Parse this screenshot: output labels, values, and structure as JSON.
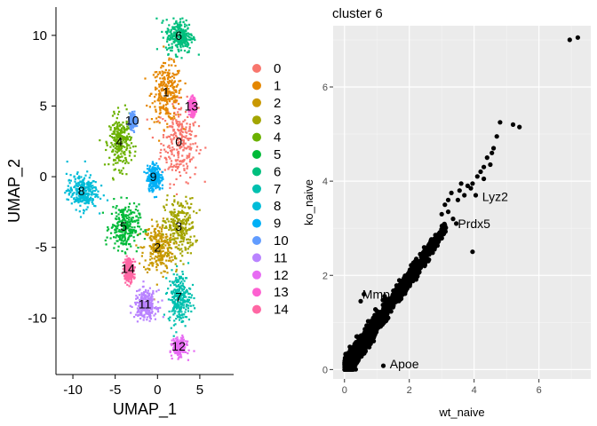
{
  "chart_data": [
    {
      "type": "scatter",
      "title": "",
      "xlabel": "UMAP_1",
      "ylabel": "UMAP_2",
      "xlim": [
        -12,
        9
      ],
      "ylim": [
        -14,
        12
      ],
      "xticks": [
        -10,
        -5,
        0,
        5
      ],
      "yticks": [
        -10,
        -5,
        0,
        5,
        10
      ],
      "grid": false,
      "legend_position": "right",
      "clusters": [
        {
          "name": "0",
          "color": "#F8766D",
          "center": [
            2.5,
            2.5
          ],
          "spread": [
            2.2,
            2.8
          ]
        },
        {
          "name": "1",
          "color": "#E58700",
          "center": [
            1.0,
            6.0
          ],
          "spread": [
            1.8,
            2.0
          ]
        },
        {
          "name": "2",
          "color": "#C99800",
          "center": [
            0.0,
            -5.0
          ],
          "spread": [
            1.8,
            1.8
          ]
        },
        {
          "name": "3",
          "color": "#A3A500",
          "center": [
            2.5,
            -3.5
          ],
          "spread": [
            1.8,
            2.0
          ]
        },
        {
          "name": "4",
          "color": "#6BB100",
          "center": [
            -4.5,
            2.5
          ],
          "spread": [
            1.3,
            1.8
          ]
        },
        {
          "name": "5",
          "color": "#00BA38",
          "center": [
            -4.0,
            -3.5
          ],
          "spread": [
            1.7,
            1.6
          ]
        },
        {
          "name": "6",
          "color": "#00BF7D",
          "center": [
            2.5,
            10.0
          ],
          "spread": [
            1.6,
            1.2
          ]
        },
        {
          "name": "7",
          "color": "#00C0AF",
          "center": [
            2.5,
            -8.5
          ],
          "spread": [
            1.3,
            1.8
          ]
        },
        {
          "name": "8",
          "color": "#00BCD8",
          "center": [
            -9.0,
            -1.0
          ],
          "spread": [
            1.8,
            1.2
          ]
        },
        {
          "name": "9",
          "color": "#00B0F6",
          "center": [
            -0.5,
            0.0
          ],
          "spread": [
            0.8,
            0.9
          ]
        },
        {
          "name": "10",
          "color": "#619CFF",
          "center": [
            -3.0,
            4.0
          ],
          "spread": [
            0.4,
            0.5
          ]
        },
        {
          "name": "11",
          "color": "#B983FF",
          "center": [
            -1.5,
            -9.0
          ],
          "spread": [
            1.3,
            1.0
          ]
        },
        {
          "name": "12",
          "color": "#E76BF3",
          "center": [
            2.5,
            -12.0
          ],
          "spread": [
            0.8,
            0.6
          ]
        },
        {
          "name": "13",
          "color": "#FD61D1",
          "center": [
            4.0,
            5.0
          ],
          "spread": [
            0.4,
            0.6
          ]
        },
        {
          "name": "14",
          "color": "#FF67A4",
          "center": [
            -3.5,
            -6.5
          ],
          "spread": [
            0.6,
            0.8
          ]
        }
      ]
    },
    {
      "type": "scatter",
      "title": "cluster 6",
      "xlabel": "wt_naive",
      "ylabel": "ko_naive",
      "xlim": [
        -0.35,
        7.6
      ],
      "ylim": [
        -0.2,
        7.3
      ],
      "xticks": [
        0,
        2,
        4,
        6
      ],
      "yticks": [
        0,
        2,
        4,
        6
      ],
      "grid": true,
      "background": "#EBEBEB",
      "point_color": "#000000",
      "points": [
        [
          7.2,
          7.05
        ],
        [
          6.95,
          7.0
        ],
        [
          5.4,
          5.15
        ],
        [
          5.2,
          5.2
        ],
        [
          4.8,
          5.25
        ],
        [
          4.7,
          4.95
        ],
        [
          4.6,
          4.7
        ],
        [
          4.55,
          4.6
        ],
        [
          4.5,
          4.35
        ],
        [
          4.4,
          4.5
        ],
        [
          4.3,
          4.3
        ],
        [
          4.2,
          4.2
        ],
        [
          4.3,
          4.05
        ],
        [
          4.1,
          4.1
        ],
        [
          3.95,
          3.95
        ],
        [
          3.9,
          3.85
        ],
        [
          3.8,
          3.9
        ],
        [
          3.7,
          3.7
        ],
        [
          3.6,
          3.95
        ],
        [
          3.55,
          3.8
        ],
        [
          3.5,
          3.6
        ],
        [
          3.3,
          3.75
        ],
        [
          3.2,
          3.6
        ],
        [
          3.1,
          3.5
        ],
        [
          3.2,
          3.35
        ],
        [
          3.0,
          3.3
        ],
        [
          4.05,
          3.7
        ],
        [
          3.45,
          3.1
        ],
        [
          3.35,
          3.2
        ],
        [
          3.95,
          2.5
        ],
        [
          1.2,
          0.08
        ],
        [
          0.6,
          1.6
        ],
        [
          0.5,
          1.45
        ]
      ],
      "band": {
        "x_from": 0.0,
        "x_to": 3.1,
        "slope": 0.97,
        "half_width": 0.28,
        "count": 1700
      },
      "annotations": [
        {
          "label": "Lyz2",
          "x": 4.25,
          "y": 3.67
        },
        {
          "label": "Prdx5",
          "x": 3.5,
          "y": 3.1
        },
        {
          "label": "Mmp",
          "x": 0.55,
          "y": 1.6
        },
        {
          "label": "Apoe",
          "x": 1.4,
          "y": 0.12
        }
      ]
    }
  ]
}
